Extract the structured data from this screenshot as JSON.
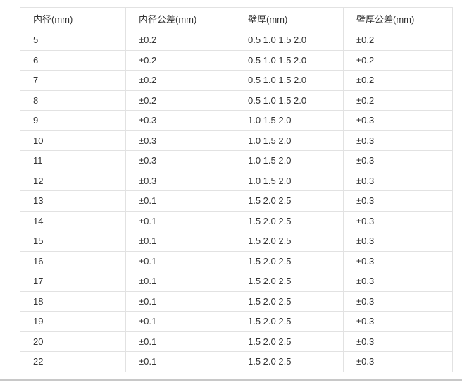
{
  "table": {
    "columns": [
      {
        "label": "内径(mm)"
      },
      {
        "label": "内径公差(mm)"
      },
      {
        "label": "壁厚(mm)"
      },
      {
        "label": "壁厚公差(mm)"
      }
    ],
    "rows": [
      [
        "5",
        "±0.2",
        "0.5 1.0 1.5 2.0",
        "±0.2"
      ],
      [
        "6",
        "±0.2",
        "0.5 1.0 1.5 2.0",
        "±0.2"
      ],
      [
        "7",
        "±0.2",
        "0.5 1.0 1.5 2.0",
        "±0.2"
      ],
      [
        "8",
        "±0.2",
        "0.5 1.0 1.5 2.0",
        "±0.2"
      ],
      [
        "9",
        "±0.3",
        "1.0 1.5 2.0",
        "±0.3"
      ],
      [
        "10",
        "±0.3",
        "1.0 1.5 2.0",
        "±0.3"
      ],
      [
        "11",
        "±0.3",
        "1.0 1.5 2.0",
        "±0.3"
      ],
      [
        "12",
        "±0.3",
        "1.0 1.5 2.0",
        "±0.3"
      ],
      [
        "13",
        "±0.1",
        "1.5 2.0 2.5",
        "±0.3"
      ],
      [
        "14",
        "±0.1",
        "1.5 2.0 2.5",
        "±0.3"
      ],
      [
        "15",
        "±0.1",
        "1.5 2.0 2.5",
        "±0.3"
      ],
      [
        "16",
        "±0.1",
        "1.5 2.0 2.5",
        "±0.3"
      ],
      [
        "17",
        "±0.1",
        "1.5 2.0 2.5",
        "±0.3"
      ],
      [
        "18",
        "±0.1",
        "1.5 2.0 2.5",
        "±0.3"
      ],
      [
        "19",
        "±0.1",
        "1.5 2.0 2.5",
        "±0.3"
      ],
      [
        "20",
        "±0.1",
        "1.5 2.0 2.5",
        "±0.3"
      ],
      [
        "22",
        "±0.1",
        "1.5 2.0 2.5",
        "±0.3"
      ]
    ]
  },
  "chart_data": {
    "type": "table",
    "title": "",
    "columns": [
      "内径(mm)",
      "内径公差(mm)",
      "壁厚(mm)",
      "壁厚公差(mm)"
    ],
    "rows": [
      [
        "5",
        "±0.2",
        "0.5 1.0 1.5 2.0",
        "±0.2"
      ],
      [
        "6",
        "±0.2",
        "0.5 1.0 1.5 2.0",
        "±0.2"
      ],
      [
        "7",
        "±0.2",
        "0.5 1.0 1.5 2.0",
        "±0.2"
      ],
      [
        "8",
        "±0.2",
        "0.5 1.0 1.5 2.0",
        "±0.2"
      ],
      [
        "9",
        "±0.3",
        "1.0 1.5 2.0",
        "±0.3"
      ],
      [
        "10",
        "±0.3",
        "1.0 1.5 2.0",
        "±0.3"
      ],
      [
        "11",
        "±0.3",
        "1.0 1.5 2.0",
        "±0.3"
      ],
      [
        "12",
        "±0.3",
        "1.0 1.5 2.0",
        "±0.3"
      ],
      [
        "13",
        "±0.1",
        "1.5 2.0 2.5",
        "±0.3"
      ],
      [
        "14",
        "±0.1",
        "1.5 2.0 2.5",
        "±0.3"
      ],
      [
        "15",
        "±0.1",
        "1.5 2.0 2.5",
        "±0.3"
      ],
      [
        "16",
        "±0.1",
        "1.5 2.0 2.5",
        "±0.3"
      ],
      [
        "17",
        "±0.1",
        "1.5 2.0 2.5",
        "±0.3"
      ],
      [
        "18",
        "±0.1",
        "1.5 2.0 2.5",
        "±0.3"
      ],
      [
        "19",
        "±0.1",
        "1.5 2.0 2.5",
        "±0.3"
      ],
      [
        "20",
        "±0.1",
        "1.5 2.0 2.5",
        "±0.3"
      ],
      [
        "22",
        "±0.1",
        "1.5 2.0 2.5",
        "±0.3"
      ]
    ]
  },
  "colors": {
    "background": "#ffffff",
    "table_border": "#e2e2e2",
    "text": "#333333",
    "bottom_divider": "#c8c8c8"
  }
}
